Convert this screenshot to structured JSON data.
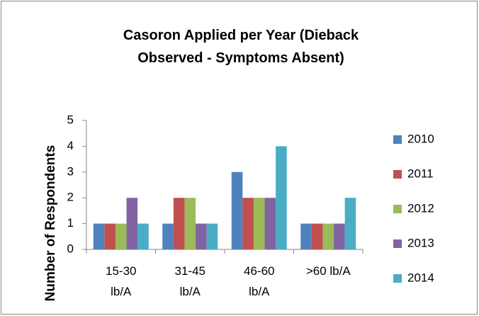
{
  "chart_data": {
    "type": "bar",
    "title": "Casoron Applied per Year (Dieback Observed - Symptoms Absent)",
    "y_label": "Number of Respondents",
    "categories": [
      "15-30\nlb/A",
      "31-45\nlb/A",
      "46-60\nlb/A",
      ">60 lb/A"
    ],
    "series": [
      {
        "name": "2010",
        "color": "#4f81bd",
        "values": [
          1,
          1,
          3,
          1
        ]
      },
      {
        "name": "2011",
        "color": "#c0504d",
        "values": [
          1,
          2,
          2,
          1
        ]
      },
      {
        "name": "2012",
        "color": "#9bbb59",
        "values": [
          1,
          2,
          2,
          1
        ]
      },
      {
        "name": "2013",
        "color": "#8064a2",
        "values": [
          2,
          1,
          2,
          1
        ]
      },
      {
        "name": "2014",
        "color": "#4bacc6",
        "values": [
          1,
          1,
          4,
          2
        ]
      }
    ],
    "ylim": [
      0,
      5
    ],
    "yticks": [
      0,
      1,
      2,
      3,
      4,
      5
    ],
    "grid": false,
    "legend": "right"
  }
}
